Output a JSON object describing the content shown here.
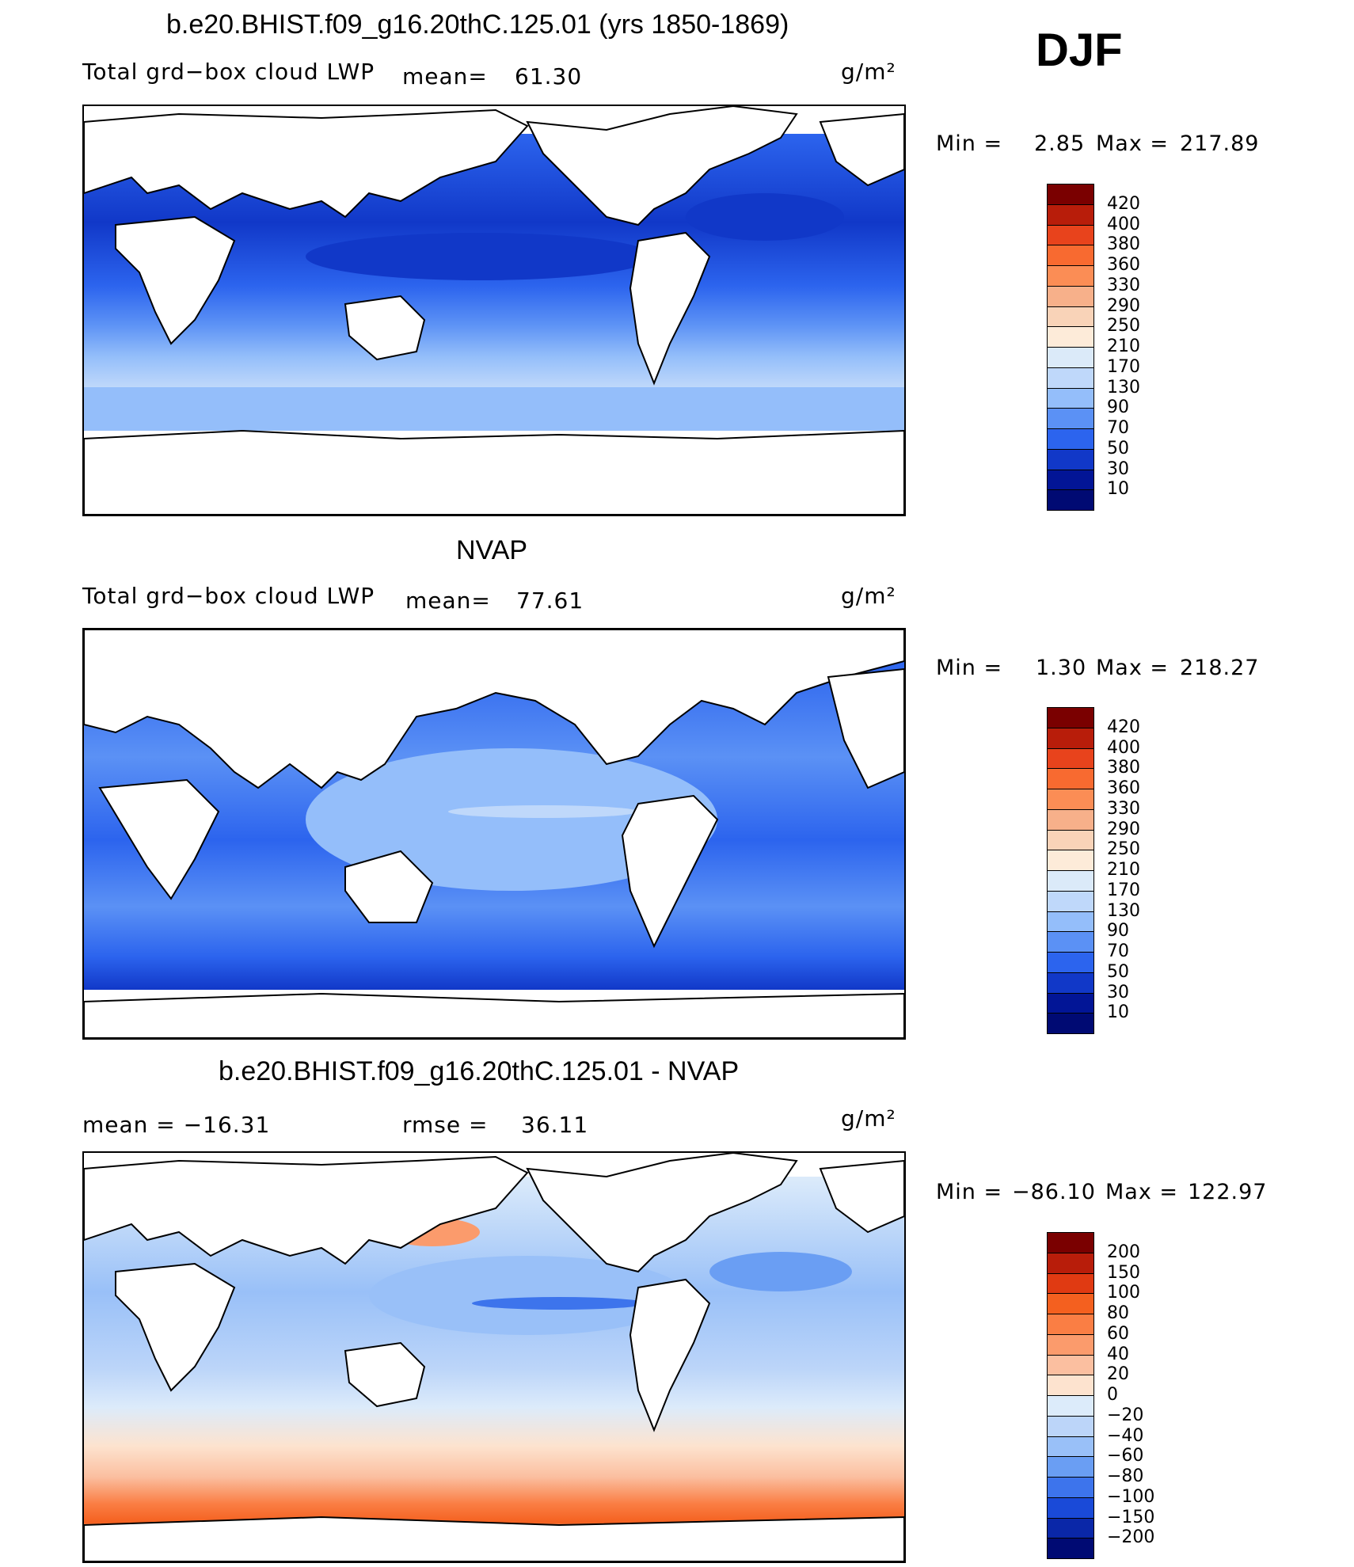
{
  "season": "DJF",
  "panels": [
    {
      "title": "b.e20.BHIST.f09_g16.20thC.125.01 (yrs 1850-1869)",
      "field_label": "Total grd−box cloud LWP",
      "stat_label": "mean=",
      "stat_value": "61.30",
      "units": "g/m²",
      "min_label": "Min  =",
      "min_value": "2.85",
      "max_label": "Max  =",
      "max_value": "217.89",
      "colorbar": [
        "420",
        "400",
        "380",
        "360",
        "330",
        "290",
        "250",
        "210",
        "170",
        "130",
        "90",
        "70",
        "50",
        "30",
        "10"
      ],
      "colors": [
        "#7a0000",
        "#b81d0a",
        "#e8431c",
        "#f86a30",
        "#fb8d55",
        "#f7b08a",
        "#f9d3b8",
        "#fdebd9",
        "#dbeaf9",
        "#bfd8fa",
        "#94befa",
        "#5b91f5",
        "#2c64ee",
        "#1138c8",
        "#021596",
        "#000a73"
      ]
    },
    {
      "title": "NVAP",
      "field_label": "Total grd−box cloud LWP",
      "stat_label": "mean=",
      "stat_value": "77.61",
      "units": "g/m²",
      "min_label": "Min  =",
      "min_value": "1.30",
      "max_label": "Max  =",
      "max_value": "218.27",
      "colorbar": [
        "420",
        "400",
        "380",
        "360",
        "330",
        "290",
        "250",
        "210",
        "170",
        "130",
        "90",
        "70",
        "50",
        "30",
        "10"
      ],
      "colors": [
        "#7a0000",
        "#b81d0a",
        "#e8431c",
        "#f86a30",
        "#fb8d55",
        "#f7b08a",
        "#f9d3b8",
        "#fdebd9",
        "#dbeaf9",
        "#bfd8fa",
        "#94befa",
        "#5b91f5",
        "#2c64ee",
        "#1138c8",
        "#021596",
        "#000a73"
      ]
    },
    {
      "title": "b.e20.BHIST.f09_g16.20thC.125.01 - NVAP",
      "field_label": "mean  =  −16.31",
      "stat_label": "rmse  =",
      "stat_value": "36.11",
      "units": "g/m²",
      "min_label": "Min  =",
      "min_value": "−86.10",
      "max_label": "Max  =",
      "max_value": "122.97",
      "colorbar": [
        "200",
        "150",
        "100",
        "80",
        "60",
        "40",
        "20",
        "0",
        "−20",
        "−40",
        "−60",
        "−80",
        "−100",
        "−150",
        "−200"
      ],
      "colors": [
        "#7a0000",
        "#b81d0a",
        "#e03a12",
        "#f4601f",
        "#fa7e44",
        "#fb9b6c",
        "#fbbfa0",
        "#fde3cf",
        "#dcebfa",
        "#bcd5f9",
        "#99c0f8",
        "#6a9ef3",
        "#3d74ec",
        "#1a4ad8",
        "#0a27a8",
        "#000a73"
      ]
    }
  ]
}
